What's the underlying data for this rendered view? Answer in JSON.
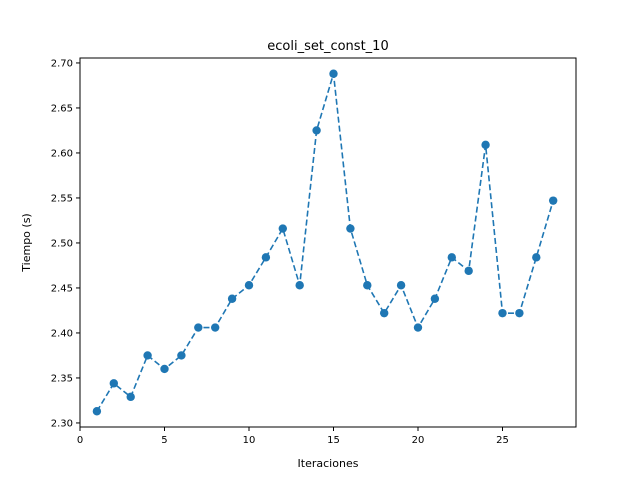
{
  "chart_data": {
    "type": "line",
    "title": "ecoli_set_const_10",
    "xlabel": "Iteraciones",
    "ylabel": "Tiempo (s)",
    "xlim": [
      0,
      29.35
    ],
    "ylim": [
      2.2955,
      2.7055
    ],
    "xticks": [
      0,
      5,
      10,
      15,
      20,
      25
    ],
    "yticks": [
      2.3,
      2.35,
      2.4,
      2.45,
      2.5,
      2.55,
      2.6,
      2.65,
      2.7
    ],
    "ytick_labels": [
      "2.30",
      "2.35",
      "2.40",
      "2.45",
      "2.50",
      "2.55",
      "2.60",
      "2.65",
      "2.70"
    ],
    "grid": false,
    "series": [
      {
        "color": "#1f77b4",
        "line_style": "dashed",
        "marker": "circle",
        "x": [
          1,
          2,
          3,
          4,
          5,
          6,
          7,
          8,
          9,
          10,
          11,
          12,
          13,
          14,
          15,
          16,
          17,
          18,
          19,
          20,
          21,
          22,
          23,
          24,
          25,
          26,
          27,
          28
        ],
        "y": [
          2.313,
          2.344,
          2.329,
          2.375,
          2.36,
          2.375,
          2.406,
          2.406,
          2.438,
          2.453,
          2.484,
          2.516,
          2.453,
          2.625,
          2.688,
          2.516,
          2.453,
          2.422,
          2.453,
          2.406,
          2.438,
          2.484,
          2.469,
          2.609,
          2.422,
          2.422,
          2.484,
          2.547
        ]
      }
    ]
  }
}
